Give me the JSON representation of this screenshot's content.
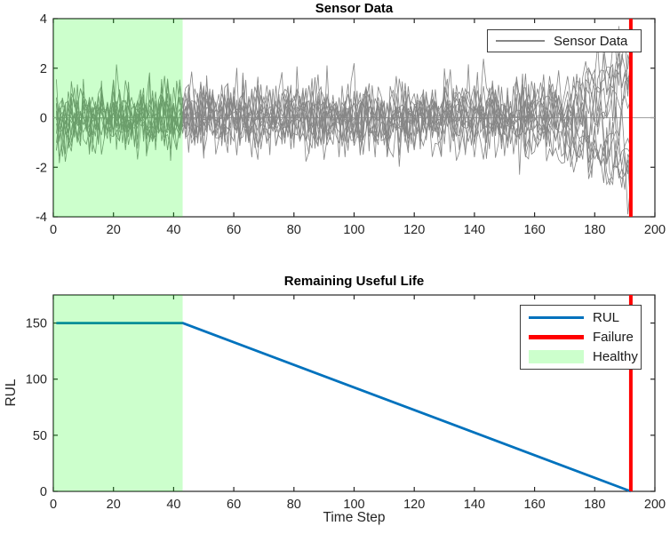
{
  "figure": {
    "background": "#ffffff"
  },
  "colors": {
    "sensor_line": "#868686",
    "zero_reference_line": "#a0a0a0",
    "rul_line": "#0072BD",
    "failure_line": "#ff0000",
    "healthy_fill": "#00ff00",
    "healthy_fill_alpha": 0.2,
    "healthy_swatch": "#ccffcc",
    "axis": "#262626",
    "tick_label": "#262626"
  },
  "chart_data": [
    {
      "type": "line",
      "title": "Sensor Data",
      "xlabel": "",
      "ylabel": "",
      "xlim": [
        0,
        200
      ],
      "ylim": [
        -4,
        4
      ],
      "xticks": [
        0,
        20,
        40,
        60,
        80,
        100,
        120,
        140,
        160,
        180,
        200
      ],
      "yticks": [
        -4,
        -2,
        0,
        2,
        4
      ],
      "grid": false,
      "legend_position": "northeast",
      "legend": [
        {
          "label": "Sensor Data",
          "kind": "line",
          "color": "#868686"
        }
      ],
      "annotations": {
        "healthy_region_x": [
          0,
          43
        ],
        "failure_x": 192,
        "zero_reference_y": 0
      },
      "series_summary": {
        "description": "14 noisy sensor traces, mean 0, std ~0.7, fanning out to about ±3.5 approaching failure at t=192",
        "count": 14,
        "x_start": 1,
        "x_end": 192,
        "base_std": 0.68,
        "diverge_start": 147,
        "diverge_amp_range": [
          0.6,
          2.7
        ],
        "seed": 11
      }
    },
    {
      "type": "line",
      "title": "Remaining Useful Life",
      "xlabel": "Time Step",
      "ylabel": "RUL",
      "xlim": [
        0,
        200
      ],
      "ylim": [
        0,
        175
      ],
      "xticks": [
        0,
        20,
        40,
        60,
        80,
        100,
        120,
        140,
        160,
        180,
        200
      ],
      "yticks": [
        0,
        50,
        100,
        150
      ],
      "grid": false,
      "legend_position": "northeast",
      "legend": [
        {
          "label": "RUL",
          "kind": "line",
          "color": "#0072BD"
        },
        {
          "label": "Failure",
          "kind": "thick-line",
          "color": "#ff0000"
        },
        {
          "label": "Healthy",
          "kind": "patch",
          "color": "#ccffcc"
        }
      ],
      "series": [
        {
          "name": "RUL",
          "points": [
            [
              1,
              150
            ],
            [
              43,
              150
            ],
            [
              192,
              0
            ]
          ]
        }
      ],
      "annotations": {
        "healthy_region_x": [
          0,
          43
        ],
        "failure_x": 192
      }
    }
  ]
}
